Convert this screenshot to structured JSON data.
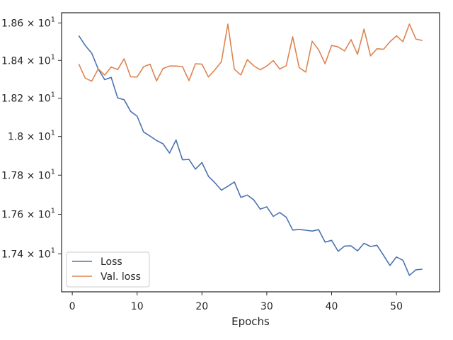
{
  "chart_data": {
    "type": "line",
    "title": "",
    "xlabel": "Epochs",
    "ylabel": "",
    "xlim": [
      -1.65,
      56.65
    ],
    "ylim": [
      17.21,
      18.655
    ],
    "yscale": "log",
    "grid": false,
    "legend_position": "lower-left",
    "x_ticks": [
      0,
      10,
      20,
      30,
      40,
      50
    ],
    "x_tick_labels": [
      "0",
      "10",
      "20",
      "30",
      "40",
      "50"
    ],
    "y_ticks": [
      17.4,
      17.6,
      17.8,
      18.0,
      18.2,
      18.4,
      18.6
    ],
    "y_tick_labels": [
      {
        "mantissa": "1.74",
        "exp": "1"
      },
      {
        "mantissa": "1.76",
        "exp": "1"
      },
      {
        "mantissa": "1.78",
        "exp": "1"
      },
      {
        "mantissa": "1.8",
        "exp": "1"
      },
      {
        "mantissa": "1.82",
        "exp": "1"
      },
      {
        "mantissa": "1.84",
        "exp": "1"
      },
      {
        "mantissa": "1.86",
        "exp": "1"
      }
    ],
    "y_tick_sep": " × 10",
    "x": [
      1,
      2,
      3,
      4,
      5,
      6,
      7,
      8,
      9,
      10,
      11,
      12,
      13,
      14,
      15,
      16,
      17,
      18,
      19,
      20,
      21,
      22,
      23,
      24,
      25,
      26,
      27,
      28,
      29,
      30,
      31,
      32,
      33,
      34,
      35,
      36,
      37,
      38,
      39,
      40,
      41,
      42,
      43,
      44,
      45,
      46,
      47,
      48,
      49,
      50,
      51,
      52,
      53,
      54
    ],
    "series": [
      {
        "name": "Loss",
        "color": "#4c72b0",
        "values": [
          18.532,
          18.48,
          18.438,
          18.354,
          18.298,
          18.31,
          18.202,
          18.192,
          18.131,
          18.106,
          18.023,
          18.002,
          17.979,
          17.962,
          17.914,
          17.982,
          17.879,
          17.881,
          17.831,
          17.865,
          17.794,
          17.761,
          17.723,
          17.743,
          17.765,
          17.686,
          17.698,
          17.673,
          17.626,
          17.638,
          17.589,
          17.609,
          17.585,
          17.52,
          17.523,
          17.519,
          17.515,
          17.522,
          17.459,
          17.468,
          17.413,
          17.439,
          17.44,
          17.415,
          17.453,
          17.437,
          17.443,
          17.393,
          17.342,
          17.384,
          17.368,
          17.292,
          17.32,
          17.323
        ]
      },
      {
        "name": "Val. loss",
        "color": "#dd8452",
        "values": [
          18.381,
          18.306,
          18.29,
          18.355,
          18.322,
          18.365,
          18.351,
          18.408,
          18.313,
          18.312,
          18.366,
          18.38,
          18.291,
          18.357,
          18.37,
          18.37,
          18.367,
          18.293,
          18.382,
          18.38,
          18.312,
          18.35,
          18.393,
          18.594,
          18.353,
          18.323,
          18.404,
          18.371,
          18.35,
          18.37,
          18.399,
          18.354,
          18.372,
          18.526,
          18.362,
          18.338,
          18.502,
          18.456,
          18.382,
          18.48,
          18.472,
          18.45,
          18.511,
          18.432,
          18.567,
          18.424,
          18.462,
          18.459,
          18.499,
          18.531,
          18.5,
          18.594,
          18.514,
          18.506
        ]
      }
    ]
  }
}
